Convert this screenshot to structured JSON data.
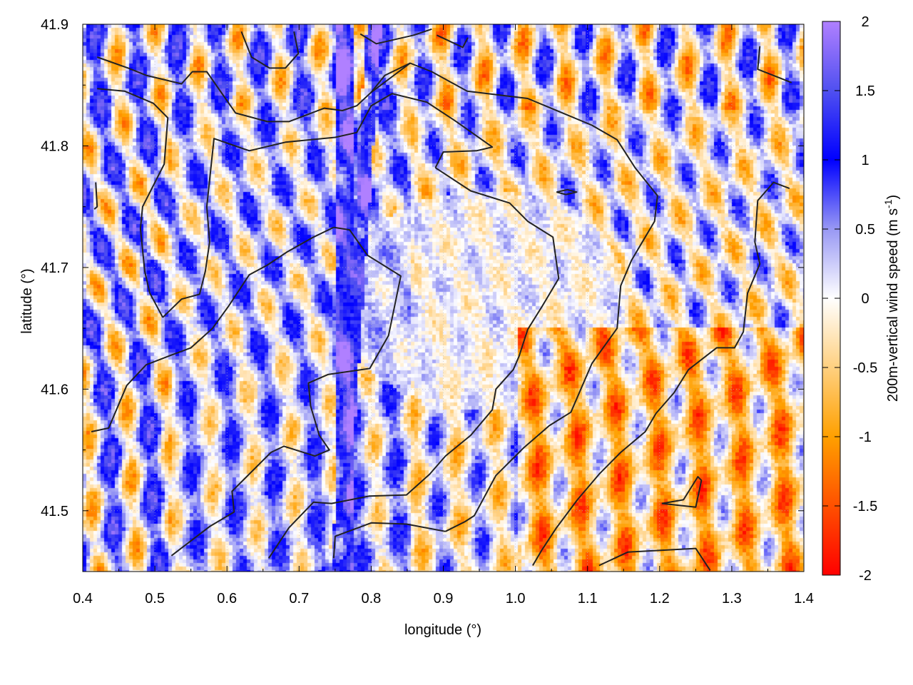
{
  "chart_data": {
    "type": "heatmap",
    "title": "",
    "xlabel": "longitude (°)",
    "ylabel": "latitude (°)",
    "xlim": [
      0.4,
      1.4
    ],
    "ylim": [
      41.45,
      41.9
    ],
    "xticks": [
      "0.4",
      "0.5",
      "0.6",
      "0.7",
      "0.8",
      "0.9",
      "1.0",
      "1.1",
      "1.2",
      "1.3",
      "1.4"
    ],
    "yticks": [
      "41.5",
      "41.6",
      "41.7",
      "41.8",
      "41.9"
    ],
    "grid": true,
    "colorbar": {
      "label": "200m-vertical wind speed (m s",
      "label_sup": "-1",
      "label_end": ")",
      "range": [
        -2,
        2
      ],
      "ticks": [
        "2",
        "1.5",
        "1",
        "0.5",
        "0",
        "-0.5",
        "-1",
        "-1.5",
        "-2"
      ],
      "colormap": [
        {
          "value": -2,
          "color": "#ff0000"
        },
        {
          "value": -1.5,
          "color": "#ff5000"
        },
        {
          "value": -1,
          "color": "#ffa000"
        },
        {
          "value": -0.5,
          "color": "#ffd080"
        },
        {
          "value": 0,
          "color": "#ffffff"
        },
        {
          "value": 0.5,
          "color": "#9898f4"
        },
        {
          "value": 1,
          "color": "#0000ff"
        },
        {
          "value": 1.5,
          "color": "#5050f0"
        },
        {
          "value": 2,
          "color": "#b080ff"
        }
      ]
    },
    "contour_color": "#222222",
    "contours": [
      [
        [
          0.748,
          41.733
        ],
        [
          0.77,
          41.731
        ],
        [
          0.795,
          41.71
        ],
        [
          0.841,
          41.693
        ],
        [
          0.824,
          41.644
        ],
        [
          0.798,
          41.617
        ],
        [
          0.74,
          41.612
        ],
        [
          0.713,
          41.605
        ],
        [
          0.716,
          41.586
        ],
        [
          0.728,
          41.562
        ],
        [
          0.742,
          41.55
        ],
        [
          0.722,
          41.545
        ],
        [
          0.679,
          41.553
        ],
        [
          0.661,
          41.548
        ],
        [
          0.607,
          41.516
        ],
        [
          0.61,
          41.499
        ],
        [
          0.576,
          41.487
        ],
        [
          0.523,
          41.463
        ]
      ],
      [
        [
          0.748,
          41.733
        ],
        [
          0.72,
          41.725
        ],
        [
          0.684,
          41.713
        ],
        [
          0.656,
          41.702
        ],
        [
          0.631,
          41.694
        ],
        [
          0.602,
          41.668
        ],
        [
          0.58,
          41.65
        ],
        [
          0.55,
          41.634
        ],
        [
          0.523,
          41.628
        ],
        [
          0.488,
          41.62
        ],
        [
          0.461,
          41.603
        ],
        [
          0.436,
          41.568
        ],
        [
          0.412,
          41.565
        ]
      ],
      [
        [
          0.889,
          41.782
        ],
        [
          0.9,
          41.795
        ],
        [
          0.946,
          41.796
        ],
        [
          0.968,
          41.799
        ],
        [
          0.918,
          41.82
        ],
        [
          0.877,
          41.836
        ],
        [
          0.829,
          41.843
        ],
        [
          0.8,
          41.833
        ],
        [
          0.78,
          41.811
        ],
        [
          0.75,
          41.807
        ],
        [
          0.681,
          41.803
        ],
        [
          0.631,
          41.796
        ],
        [
          0.582,
          41.806
        ],
        [
          0.572,
          41.75
        ],
        [
          0.576,
          41.721
        ],
        [
          0.57,
          41.697
        ],
        [
          0.562,
          41.678
        ],
        [
          0.537,
          41.674
        ],
        [
          0.511,
          41.659
        ]
      ],
      [
        [
          0.889,
          41.782
        ],
        [
          0.938,
          41.763
        ],
        [
          0.992,
          41.753
        ],
        [
          1.017,
          41.738
        ],
        [
          1.052,
          41.725
        ],
        [
          1.06,
          41.691
        ],
        [
          1.037,
          41.668
        ],
        [
          1.017,
          41.649
        ],
        [
          1.005,
          41.627
        ],
        [
          0.997,
          41.616
        ],
        [
          0.973,
          41.6
        ],
        [
          0.968,
          41.583
        ],
        [
          0.938,
          41.562
        ],
        [
          0.903,
          41.545
        ],
        [
          0.881,
          41.53
        ],
        [
          0.849,
          41.513
        ],
        [
          0.797,
          41.512
        ],
        [
          0.745,
          41.506
        ],
        [
          0.72,
          41.507
        ],
        [
          0.686,
          41.486
        ],
        [
          0.658,
          41.461
        ]
      ],
      [
        [
          0.8,
          41.844
        ],
        [
          0.854,
          41.868
        ],
        [
          0.884,
          41.861
        ],
        [
          0.933,
          41.845
        ],
        [
          1.017,
          41.839
        ],
        [
          1.106,
          41.817
        ],
        [
          1.141,
          41.805
        ],
        [
          1.166,
          41.782
        ],
        [
          1.197,
          41.759
        ],
        [
          1.193,
          41.738
        ],
        [
          1.161,
          41.706
        ],
        [
          1.146,
          41.685
        ],
        [
          1.141,
          41.65
        ],
        [
          1.106,
          41.621
        ],
        [
          1.077,
          41.581
        ],
        [
          1.047,
          41.57
        ],
        [
          1.012,
          41.552
        ],
        [
          0.973,
          41.529
        ],
        [
          0.943,
          41.496
        ],
        [
          0.93,
          41.491
        ],
        [
          0.903,
          41.483
        ]
      ],
      [
        [
          0.748,
          41.461
        ],
        [
          0.75,
          41.479
        ],
        [
          0.8,
          41.49
        ],
        [
          0.849,
          41.489
        ],
        [
          0.903,
          41.483
        ]
      ],
      [
        [
          1.38,
          41.765
        ],
        [
          1.358,
          41.77
        ],
        [
          1.336,
          41.755
        ],
        [
          1.332,
          41.721
        ],
        [
          1.339,
          41.703
        ],
        [
          1.322,
          41.679
        ],
        [
          1.316,
          41.647
        ],
        [
          1.304,
          41.634
        ],
        [
          1.279,
          41.634
        ],
        [
          1.24,
          41.616
        ],
        [
          1.22,
          41.597
        ],
        [
          1.195,
          41.58
        ],
        [
          1.18,
          41.565
        ],
        [
          1.146,
          41.548
        ],
        [
          1.116,
          41.53
        ],
        [
          1.086,
          41.509
        ],
        [
          1.057,
          41.486
        ],
        [
          1.037,
          41.468
        ],
        [
          1.024,
          41.455
        ]
      ],
      [
        [
          0.42,
          41.873
        ],
        [
          0.463,
          41.864
        ],
        [
          0.488,
          41.858
        ],
        [
          0.537,
          41.851
        ],
        [
          0.552,
          41.861
        ],
        [
          0.572,
          41.861
        ],
        [
          0.612,
          41.827
        ],
        [
          0.656,
          41.82
        ],
        [
          0.686,
          41.82
        ],
        [
          0.735,
          41.831
        ],
        [
          0.76,
          41.829
        ],
        [
          0.78,
          41.833
        ],
        [
          0.8,
          41.844
        ],
        [
          0.819,
          41.858
        ],
        [
          0.854,
          41.868
        ]
      ],
      [
        [
          0.42,
          41.847
        ],
        [
          0.458,
          41.845
        ],
        [
          0.498,
          41.835
        ],
        [
          0.518,
          41.823
        ],
        [
          0.513,
          41.785
        ],
        [
          0.483,
          41.75
        ],
        [
          0.48,
          41.732
        ],
        [
          0.486,
          41.697
        ],
        [
          0.493,
          41.679
        ],
        [
          0.511,
          41.659
        ]
      ],
      [
        [
          1.116,
          41.455
        ],
        [
          1.156,
          41.466
        ],
        [
          1.25,
          41.469
        ],
        [
          1.27,
          41.451
        ]
      ],
      [
        [
          1.203,
          41.506
        ],
        [
          1.25,
          41.503
        ],
        [
          1.258,
          41.525
        ],
        [
          1.253,
          41.528
        ],
        [
          1.233,
          41.509
        ],
        [
          1.203,
          41.506
        ]
      ],
      [
        [
          0.62,
          41.894
        ],
        [
          0.634,
          41.873
        ],
        [
          0.659,
          41.864
        ],
        [
          0.681,
          41.864
        ],
        [
          0.699,
          41.876
        ],
        [
          0.693,
          41.894
        ]
      ],
      [
        [
          0.785,
          41.892
        ],
        [
          0.807,
          41.884
        ],
        [
          0.859,
          41.891
        ],
        [
          0.884,
          41.896
        ]
      ],
      [
        [
          0.891,
          41.891
        ],
        [
          0.927,
          41.881
        ],
        [
          0.934,
          41.889
        ]
      ],
      [
        [
          1.339,
          41.882
        ],
        [
          1.336,
          41.863
        ],
        [
          1.383,
          41.852
        ]
      ],
      [
        [
          1.057,
          41.762
        ],
        [
          1.072,
          41.764
        ],
        [
          1.085,
          41.762
        ],
        [
          1.07,
          41.76
        ],
        [
          1.057,
          41.762
        ]
      ],
      [
        [
          0.418,
          41.77
        ],
        [
          0.42,
          41.75
        ],
        [
          0.416,
          41.748
        ]
      ]
    ]
  }
}
